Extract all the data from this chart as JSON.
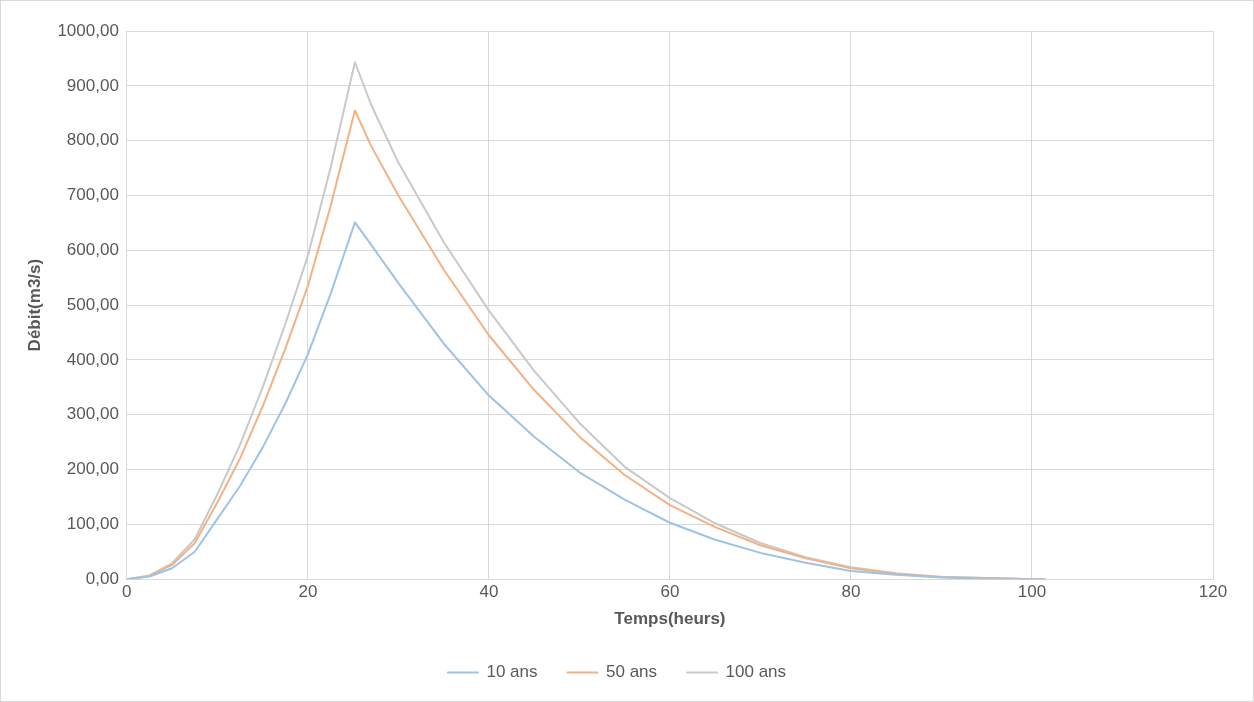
{
  "chart_data": {
    "type": "line",
    "xlabel": "Temps(heurs)",
    "ylabel": "Débit(m3/s)",
    "xlim": [
      0,
      120
    ],
    "xticks": [
      0,
      20,
      40,
      60,
      80,
      100,
      120
    ],
    "ylim": [
      0,
      1000
    ],
    "yticks": [
      {
        "value": 0,
        "label": "0,00"
      },
      {
        "value": 100,
        "label": "100,00"
      },
      {
        "value": 200,
        "label": "200,00"
      },
      {
        "value": 300,
        "label": "300,00"
      },
      {
        "value": 400,
        "label": "400,00"
      },
      {
        "value": 500,
        "label": "500,00"
      },
      {
        "value": 600,
        "label": "600,00"
      },
      {
        "value": 700,
        "label": "700,00"
      },
      {
        "value": 800,
        "label": "800,00"
      },
      {
        "value": 900,
        "label": "900,00"
      },
      {
        "value": 1000,
        "label": "1000,00"
      }
    ],
    "grid": true,
    "legend": "bottom",
    "marker": "none",
    "line_style": "solid",
    "x": [
      0,
      2.5,
      5,
      7.5,
      10,
      12.5,
      15,
      17.5,
      20,
      22.5,
      25.2,
      27,
      30,
      35,
      40,
      45,
      50,
      55,
      60,
      65,
      70,
      75,
      80,
      85,
      90,
      95,
      100,
      101.5
    ],
    "series": [
      {
        "name": "10 ans",
        "color": "#9dc3e6",
        "values": [
          0,
          5,
          20,
          50,
          110,
          170,
          240,
          320,
          410,
          520,
          651,
          610,
          540,
          430,
          335,
          260,
          195,
          145,
          103,
          72,
          48,
          30,
          15,
          8,
          3,
          1,
          0,
          0
        ]
      },
      {
        "name": "50 ans",
        "color": "#f4b183",
        "values": [
          0,
          6,
          26,
          66,
          140,
          220,
          315,
          420,
          535,
          680,
          855,
          790,
          700,
          565,
          445,
          345,
          260,
          190,
          135,
          95,
          62,
          38,
          20,
          10,
          4,
          2,
          0,
          0
        ]
      },
      {
        "name": "100 ans",
        "color": "#c9c9c9",
        "values": [
          0,
          7,
          29,
          73,
          155,
          245,
          350,
          465,
          590,
          750,
          943,
          865,
          760,
          615,
          490,
          380,
          285,
          205,
          148,
          102,
          66,
          40,
          22,
          11,
          4,
          2,
          0,
          0
        ]
      }
    ]
  }
}
